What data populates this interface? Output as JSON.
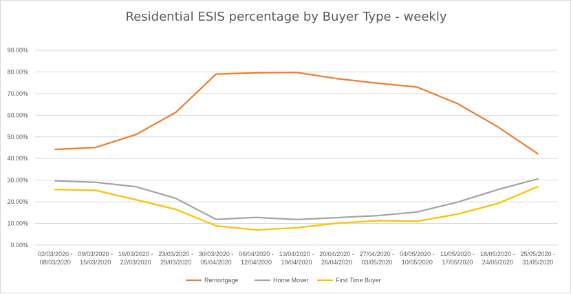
{
  "chart_data": {
    "type": "line",
    "title": "Residential ESIS percentage by Buyer Type - weekly",
    "xlabel": "",
    "ylabel": "",
    "ylim": [
      0,
      90
    ],
    "yticks": [
      "0.00%",
      "10.00%",
      "20.00%",
      "30.00%",
      "40.00%",
      "50.00%",
      "60.00%",
      "70.00%",
      "80.00%",
      "90.00%"
    ],
    "grid": true,
    "legend_position": "bottom",
    "categories": [
      [
        "02/03/2020 -",
        "08/03/2020"
      ],
      [
        "09/03/2020 -",
        "15/03/2020"
      ],
      [
        "16/03/2020 -",
        "22/03/2020"
      ],
      [
        "23/03/2020 -",
        "29/03/2020"
      ],
      [
        "30/03/2020 -",
        "05/04/2020"
      ],
      [
        "06/04/2020 -",
        "12/04/2020"
      ],
      [
        "13/04/2020 -",
        "19/04/2020"
      ],
      [
        "20/04/2020 -",
        "26/04/2020"
      ],
      [
        "27/04/2020 -",
        "03/05/2020"
      ],
      [
        "04/05/2020 -",
        "10/05/2020"
      ],
      [
        "11/05/2020 -",
        "17/05/2020"
      ],
      [
        "18/05/2020 -",
        "24/05/2020"
      ],
      [
        "25/05/2020 -",
        "31/05/2020"
      ]
    ],
    "series": [
      {
        "name": "Remortgage",
        "color": "#ED7D31",
        "values": [
          44.2,
          45.1,
          51.0,
          61.3,
          79.0,
          79.6,
          79.8,
          76.9,
          74.8,
          73.0,
          65.4,
          54.7,
          42.2
        ]
      },
      {
        "name": "Home Mover",
        "color": "#A5A5A5",
        "values": [
          29.7,
          29.0,
          27.0,
          21.6,
          11.9,
          12.8,
          11.8,
          12.7,
          13.6,
          15.3,
          19.8,
          25.6,
          30.6
        ]
      },
      {
        "name": "First Time Buyer",
        "color": "#FFC000",
        "values": [
          25.7,
          25.3,
          21.0,
          16.5,
          8.9,
          7.0,
          8.0,
          10.1,
          11.3,
          11.0,
          14.3,
          19.2,
          27.0
        ]
      }
    ]
  }
}
